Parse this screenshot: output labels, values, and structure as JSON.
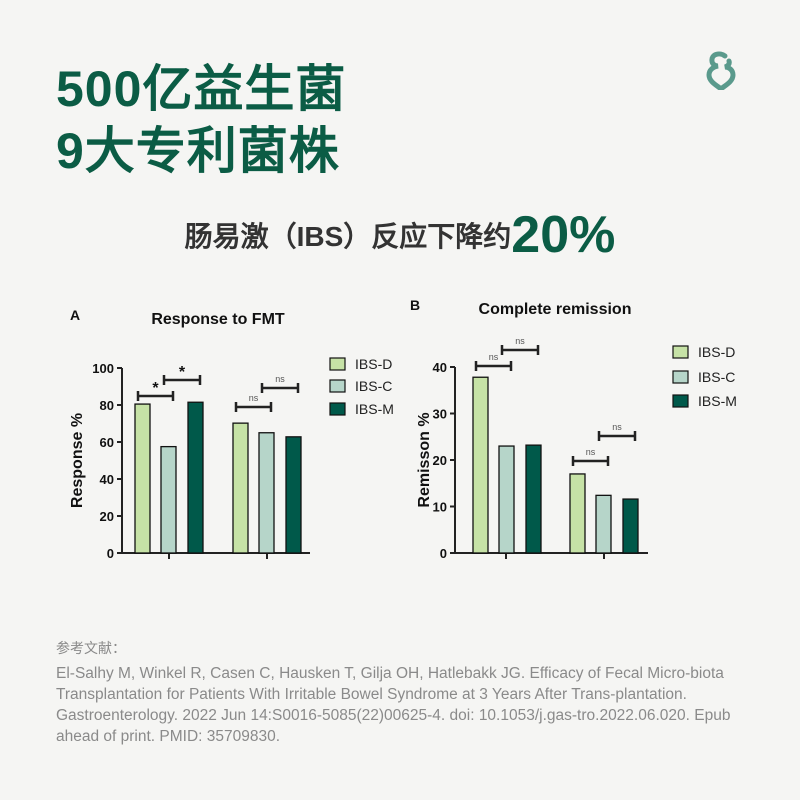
{
  "header": {
    "line1": "500亿益生菌",
    "line2": "9大专利菌株"
  },
  "subtitle": {
    "prefix": "肠易激（IBS）反应下降约",
    "highlight": "20%"
  },
  "logo": {
    "icon": "ampersand-heart-logo",
    "color": "#5a9a8c"
  },
  "colors": {
    "IBS-D": "#c6e2a6",
    "IBS-C": "#b6d5c9",
    "IBS-M": "#00594a",
    "title": "#0b5c45"
  },
  "chart_data": [
    {
      "type": "bar",
      "panel": "A",
      "title": "Response to FMT",
      "ylabel": "Response %",
      "xlabel": "",
      "ylim": [
        0,
        100
      ],
      "yticks": [
        0,
        20,
        40,
        60,
        80,
        100
      ],
      "categories": [
        "",
        ""
      ],
      "legend": "right",
      "series": [
        {
          "name": "IBS-D",
          "values": [
            80.5,
            70.2
          ]
        },
        {
          "name": "IBS-C",
          "values": [
            57.5,
            65
          ]
        },
        {
          "name": "IBS-M",
          "values": [
            81.5,
            62.8
          ]
        }
      ],
      "annotations": [
        {
          "group": 0,
          "pair": [
            0,
            1
          ],
          "text": "*"
        },
        {
          "group": 0,
          "pair": [
            1,
            2
          ],
          "text": "*"
        },
        {
          "group": 1,
          "pair": [
            0,
            1
          ],
          "text": "ns"
        },
        {
          "group": 1,
          "pair": [
            1,
            2
          ],
          "text": "ns"
        }
      ]
    },
    {
      "type": "bar",
      "panel": "B",
      "title": "Complete remission",
      "ylabel": "Remisson %",
      "xlabel": "",
      "ylim": [
        0,
        40
      ],
      "yticks": [
        0,
        10,
        20,
        30,
        40
      ],
      "categories": [
        "",
        ""
      ],
      "legend": "right",
      "series": [
        {
          "name": "IBS-D",
          "values": [
            37.8,
            17
          ]
        },
        {
          "name": "IBS-C",
          "values": [
            23,
            12.4
          ]
        },
        {
          "name": "IBS-M",
          "values": [
            23.2,
            11.6
          ]
        }
      ],
      "annotations": [
        {
          "group": 0,
          "pair": [
            0,
            1
          ],
          "text": "ns"
        },
        {
          "group": 0,
          "pair": [
            1,
            2
          ],
          "text": "ns"
        },
        {
          "group": 1,
          "pair": [
            0,
            1
          ],
          "text": "ns"
        },
        {
          "group": 1,
          "pair": [
            1,
            2
          ],
          "text": "ns"
        }
      ]
    }
  ],
  "references": {
    "label": "参考文献：",
    "text": "El-Salhy M, Winkel R, Casen C, Hausken T, Gilja OH, Hatlebakk JG. Efficacy of Fecal Micro-biota Transplantation for Patients With Irritable Bowel Syndrome at 3 Years After Trans-plantation. Gastroenterology. 2022 Jun 14:S0016-5085(22)00625-4. doi: 10.1053/j.gas-tro.2022.06.020. Epub ahead of print. PMID: 35709830."
  }
}
